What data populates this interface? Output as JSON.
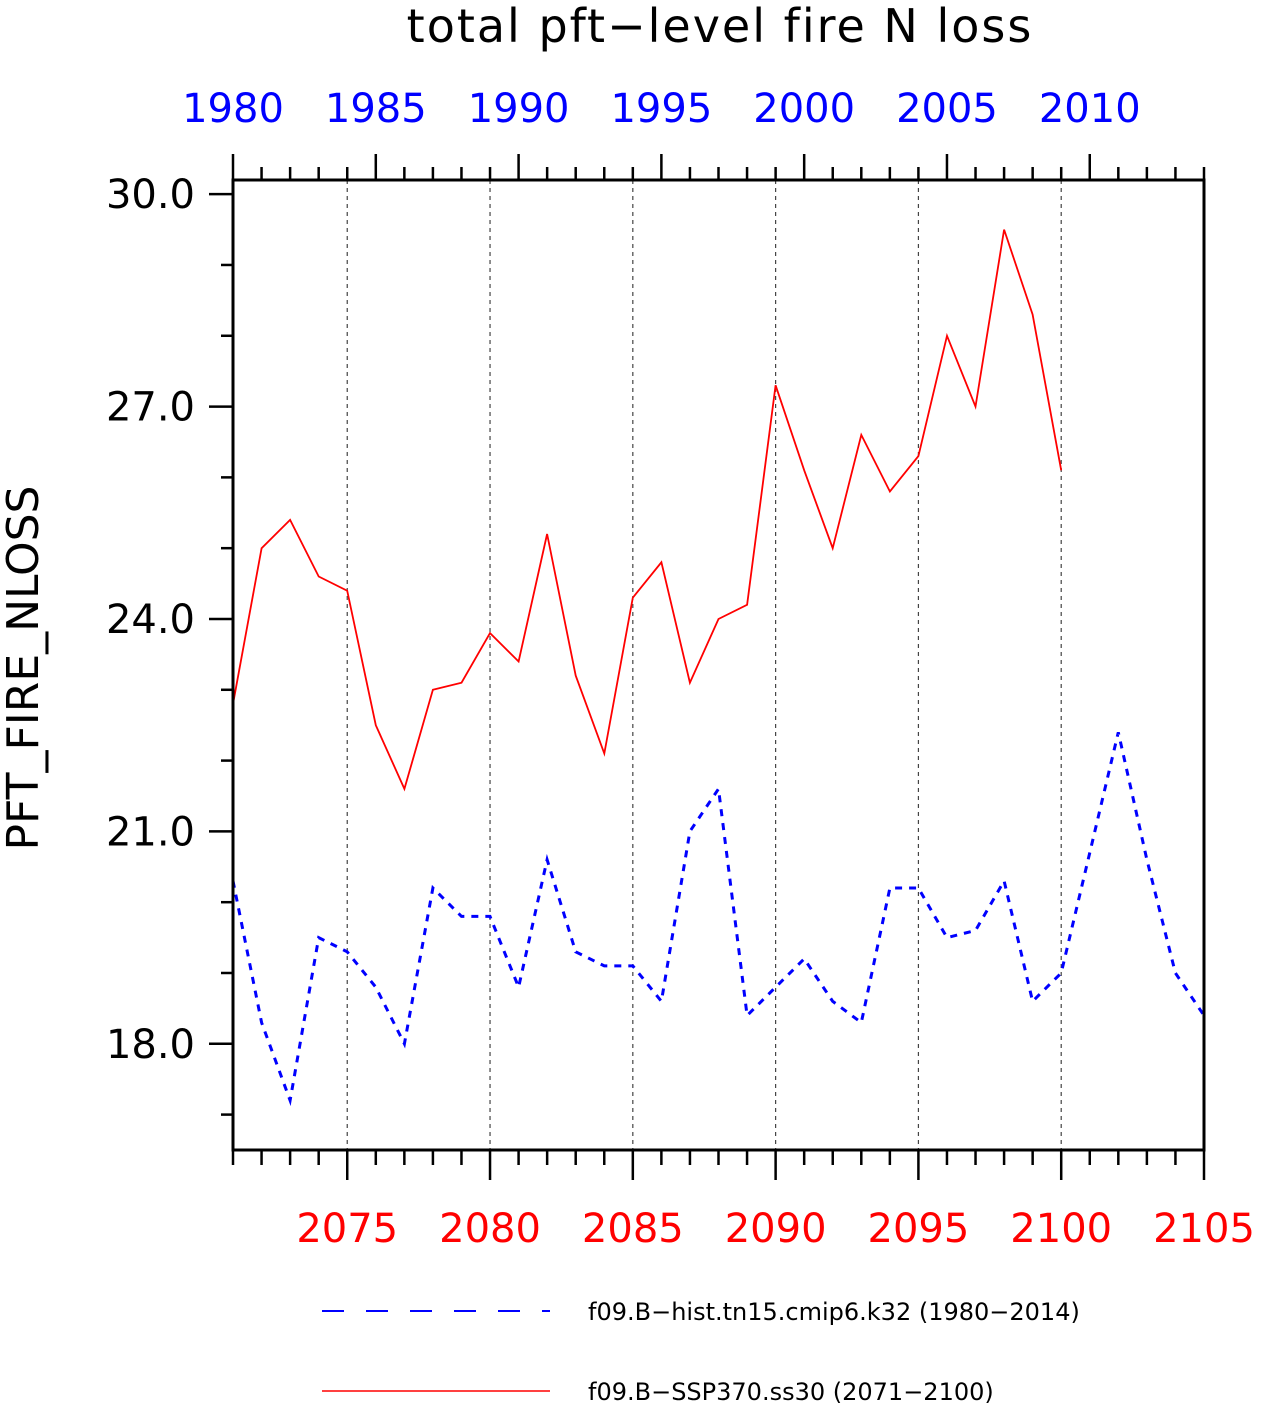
{
  "chart_data": {
    "type": "line",
    "title": "total pft−level fire N loss",
    "ylabel": "PFT_FIRE_NLOSS",
    "ylim": [
      16.5,
      30.2
    ],
    "y_ticks": [
      "18.0",
      "21.0",
      "24.0",
      "27.0",
      "30.0"
    ],
    "bottom_axis": {
      "color": "#ff0000",
      "xlim": [
        2071,
        2105
      ],
      "ticks": [
        "2075",
        "2080",
        "2085",
        "2090",
        "2095",
        "2100",
        "2105"
      ]
    },
    "top_axis": {
      "color": "#0000ff",
      "xlim": [
        1980,
        2014
      ],
      "ticks": [
        "1980",
        "1985",
        "1990",
        "1995",
        "2000",
        "2005",
        "2010"
      ]
    },
    "grid": "vertical dashed at major ticks",
    "legend_position": "bottom",
    "series": [
      {
        "name": "f09.B−hist.tn15.cmip6.k32 (1980−2014)",
        "axis": "top",
        "color": "#0000ff",
        "style": "dashed",
        "x": [
          1980,
          1981,
          1982,
          1983,
          1984,
          1985,
          1986,
          1987,
          1988,
          1989,
          1990,
          1991,
          1992,
          1993,
          1994,
          1995,
          1996,
          1997,
          1998,
          1999,
          2000,
          2001,
          2002,
          2003,
          2004,
          2005,
          2006,
          2007,
          2008,
          2009,
          2010,
          2011,
          2012,
          2013,
          2014
        ],
        "values": [
          20.3,
          18.3,
          17.2,
          19.5,
          19.3,
          18.8,
          18.0,
          20.2,
          19.8,
          19.8,
          18.8,
          20.6,
          19.3,
          19.1,
          19.1,
          18.6,
          21.0,
          21.6,
          18.4,
          18.8,
          19.2,
          18.6,
          18.3,
          20.2,
          20.2,
          19.5,
          19.6,
          20.3,
          18.6,
          19.0,
          20.7,
          22.4,
          20.6,
          19.0,
          18.4
        ]
      },
      {
        "name": "f09.B−SSP370.ss30 (2071−2100)",
        "axis": "bottom",
        "color": "#ff0000",
        "style": "solid",
        "x": [
          2071,
          2072,
          2073,
          2074,
          2075,
          2076,
          2077,
          2078,
          2079,
          2080,
          2081,
          2082,
          2083,
          2084,
          2085,
          2086,
          2087,
          2088,
          2089,
          2090,
          2091,
          2092,
          2093,
          2094,
          2095,
          2096,
          2097,
          2098,
          2099,
          2100
        ],
        "values": [
          22.8,
          25.0,
          25.4,
          24.6,
          24.4,
          22.5,
          21.6,
          23.0,
          23.1,
          23.8,
          23.4,
          25.2,
          23.2,
          22.1,
          24.3,
          24.8,
          23.1,
          24.0,
          24.2,
          27.3,
          26.1,
          25.0,
          26.6,
          25.8,
          26.3,
          28.0,
          27.0,
          29.5,
          28.3,
          26.1
        ]
      }
    ]
  }
}
